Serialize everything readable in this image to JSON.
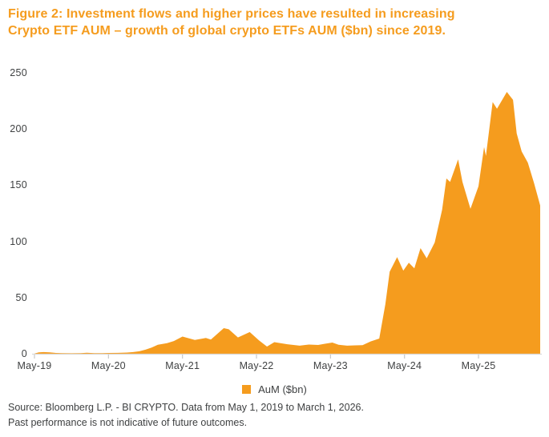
{
  "title": {
    "line1": "Figure 2: Investment flows and higher prices have resulted in increasing",
    "line2": "Crypto ETF AUM – growth of global crypto ETFs AUM ($bn) since 2019."
  },
  "colors": {
    "accent_orange": "#F59C1E",
    "axis_text": "#3F4142",
    "axis_line": "#D9D9D9",
    "tick_mark": "#C9C9C9",
    "footer_text": "#3F4142"
  },
  "legend": {
    "label": "AuM ($bn)",
    "swatch_icon": "orange-square"
  },
  "footer": {
    "line1": "Source: Bloomberg L.P. - BI CRYPTO. Data from May 1, 2019 to March 1, 2026.",
    "line2": "Past performance is not indicative of future outcomes."
  },
  "chart_data": {
    "type": "area",
    "title": "Growth of global crypto ETFs AUM ($bn) since 2019",
    "series_name": "AuM ($bn)",
    "xlabel": "",
    "ylabel": "AuM ($bn)",
    "x_unit": "months since May-2019",
    "x_tick_labels": [
      "May-19",
      "May-20",
      "May-21",
      "May-22",
      "May-23",
      "May-24",
      "May-25"
    ],
    "x_tick_months": [
      0,
      12,
      24,
      36,
      48,
      60,
      72
    ],
    "y_ticks": [
      0,
      50,
      100,
      150,
      200,
      250
    ],
    "ylim": [
      0,
      250
    ],
    "xlim_months": [
      0,
      82
    ],
    "grid": false,
    "legend_position": "bottom-center",
    "data_start": "May 1, 2019",
    "data_end": "March 1, 2026",
    "points_month_value": [
      [
        0,
        0.2
      ],
      [
        0.7,
        1.2
      ],
      [
        1.5,
        1.5
      ],
      [
        2.5,
        1.3
      ],
      [
        3.5,
        0.7
      ],
      [
        4.5,
        0.5
      ],
      [
        6,
        0.4
      ],
      [
        7.5,
        0.6
      ],
      [
        8.5,
        0.9
      ],
      [
        9.7,
        0.5
      ],
      [
        11,
        0.5
      ],
      [
        12,
        0.7
      ],
      [
        13.5,
        0.8
      ],
      [
        15,
        1.1
      ],
      [
        16,
        1.5
      ],
      [
        17,
        2.2
      ],
      [
        18,
        3.6
      ],
      [
        19,
        5.5
      ],
      [
        20,
        8
      ],
      [
        21.5,
        9.5
      ],
      [
        22.6,
        11.3
      ],
      [
        24,
        15.3
      ],
      [
        25,
        13.8
      ],
      [
        26,
        12.3
      ],
      [
        27.8,
        14
      ],
      [
        28.6,
        12.7
      ],
      [
        29.3,
        16
      ],
      [
        30.7,
        22.8
      ],
      [
        31.5,
        21.8
      ],
      [
        33,
        14.5
      ],
      [
        34.9,
        19.3
      ],
      [
        36.4,
        12
      ],
      [
        37.7,
        6.4
      ],
      [
        38.9,
        10.3
      ],
      [
        41,
        8.5
      ],
      [
        43,
        7.2
      ],
      [
        44.5,
        8.2
      ],
      [
        46,
        7.8
      ],
      [
        47,
        8.8
      ],
      [
        48.3,
        10
      ],
      [
        49.3,
        8
      ],
      [
        50.7,
        7.2
      ],
      [
        52,
        7.5
      ],
      [
        53.2,
        7.7
      ],
      [
        54.5,
        11
      ],
      [
        55.9,
        13.5
      ],
      [
        56.9,
        44
      ],
      [
        57.6,
        73
      ],
      [
        58.8,
        86
      ],
      [
        59.8,
        74
      ],
      [
        60.7,
        81
      ],
      [
        61.6,
        76
      ],
      [
        62.6,
        94
      ],
      [
        63.6,
        85
      ],
      [
        64.9,
        99
      ],
      [
        66.1,
        128
      ],
      [
        66.8,
        156
      ],
      [
        67.4,
        153
      ],
      [
        68.7,
        173
      ],
      [
        69.4,
        153
      ],
      [
        70.7,
        129
      ],
      [
        72,
        149
      ],
      [
        72.9,
        184
      ],
      [
        73.2,
        176
      ],
      [
        74.3,
        224
      ],
      [
        75,
        218
      ],
      [
        76.6,
        233
      ],
      [
        77.6,
        226
      ],
      [
        78.2,
        196
      ],
      [
        79,
        180
      ],
      [
        80,
        170
      ],
      [
        81,
        152
      ],
      [
        82,
        132
      ]
    ]
  }
}
